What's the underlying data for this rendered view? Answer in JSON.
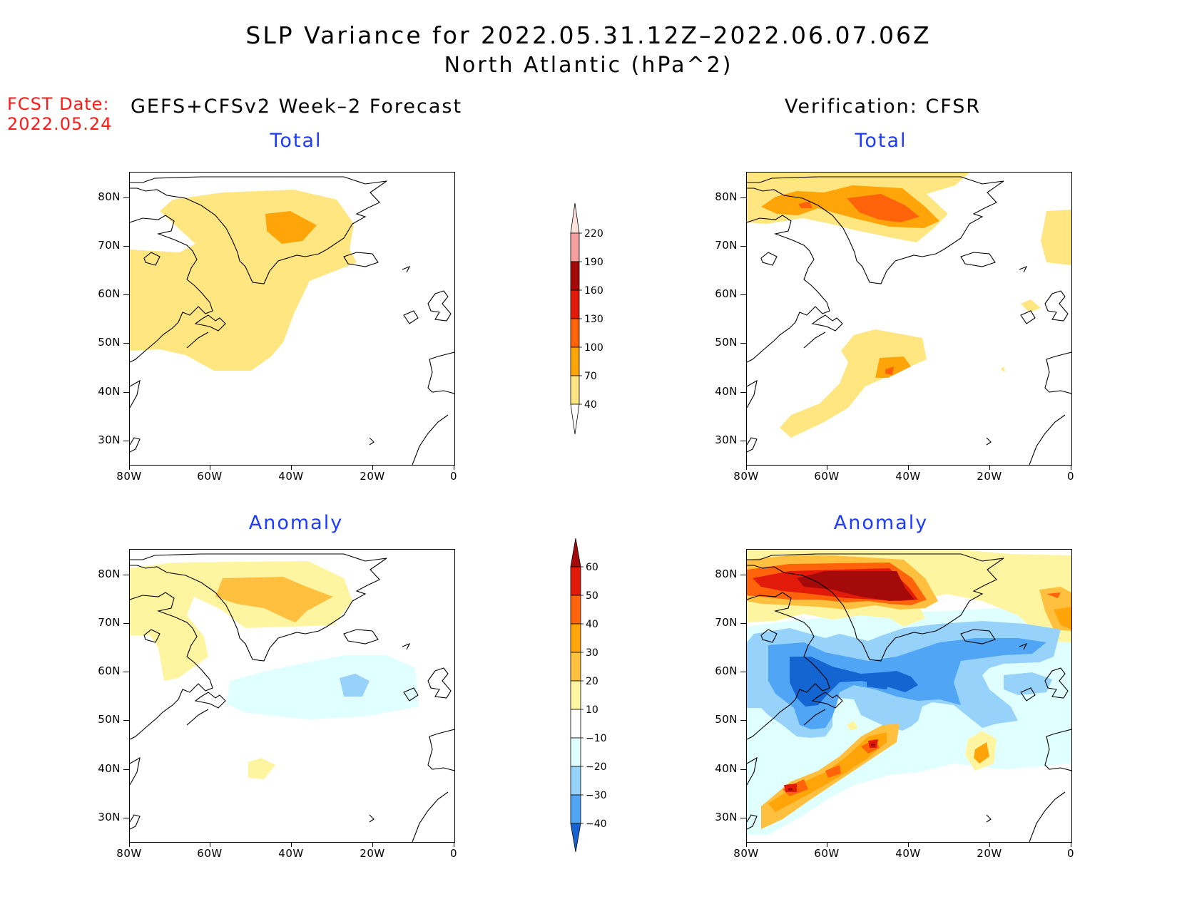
{
  "title": {
    "line1": "SLP Variance for 2022.05.31.12Z–2022.06.07.06Z",
    "line2": "North Atlantic (hPa^2)"
  },
  "fcst": {
    "label": "FCST Date:",
    "date": "2022.05.24"
  },
  "headers": {
    "forecast": "GEFS+CFSv2 Week–2 Forecast",
    "verification": "Verification: CFSR"
  },
  "panels": [
    {
      "id": "forecast-total",
      "label": "Total"
    },
    {
      "id": "verification-total",
      "label": "Total"
    },
    {
      "id": "forecast-anomaly",
      "label": "Anomaly"
    },
    {
      "id": "verification-anomaly",
      "label": "Anomaly"
    }
  ],
  "axes": {
    "lat_ticks": [
      "80N",
      "70N",
      "60N",
      "50N",
      "40N",
      "30N"
    ],
    "lon_ticks": [
      "80W",
      "60W",
      "40W",
      "20W",
      "0"
    ],
    "lat_range": [
      25,
      85
    ],
    "lon_range": [
      -80,
      0
    ]
  },
  "colorbar_total": {
    "labels": [
      "40",
      "70",
      "100",
      "130",
      "160",
      "190",
      "220"
    ],
    "colors": [
      "#ffffff",
      "#ffe680",
      "#ffa50a",
      "#ff640a",
      "#e11a0a",
      "#a50a0a",
      "#f5a0a0",
      "#fde2dc"
    ]
  },
  "colorbar_anomaly": {
    "labels": [
      "60",
      "50",
      "40",
      "30",
      "20",
      "10",
      "−10",
      "−20",
      "−30",
      "−40"
    ],
    "colors": [
      "#a50a0a",
      "#e11a0a",
      "#ff640a",
      "#ffa50a",
      "#ffc040",
      "#fff5a0",
      "#ffffff",
      "#e0ffff",
      "#96d2fa",
      "#50a5f5",
      "#1464d2"
    ]
  }
}
